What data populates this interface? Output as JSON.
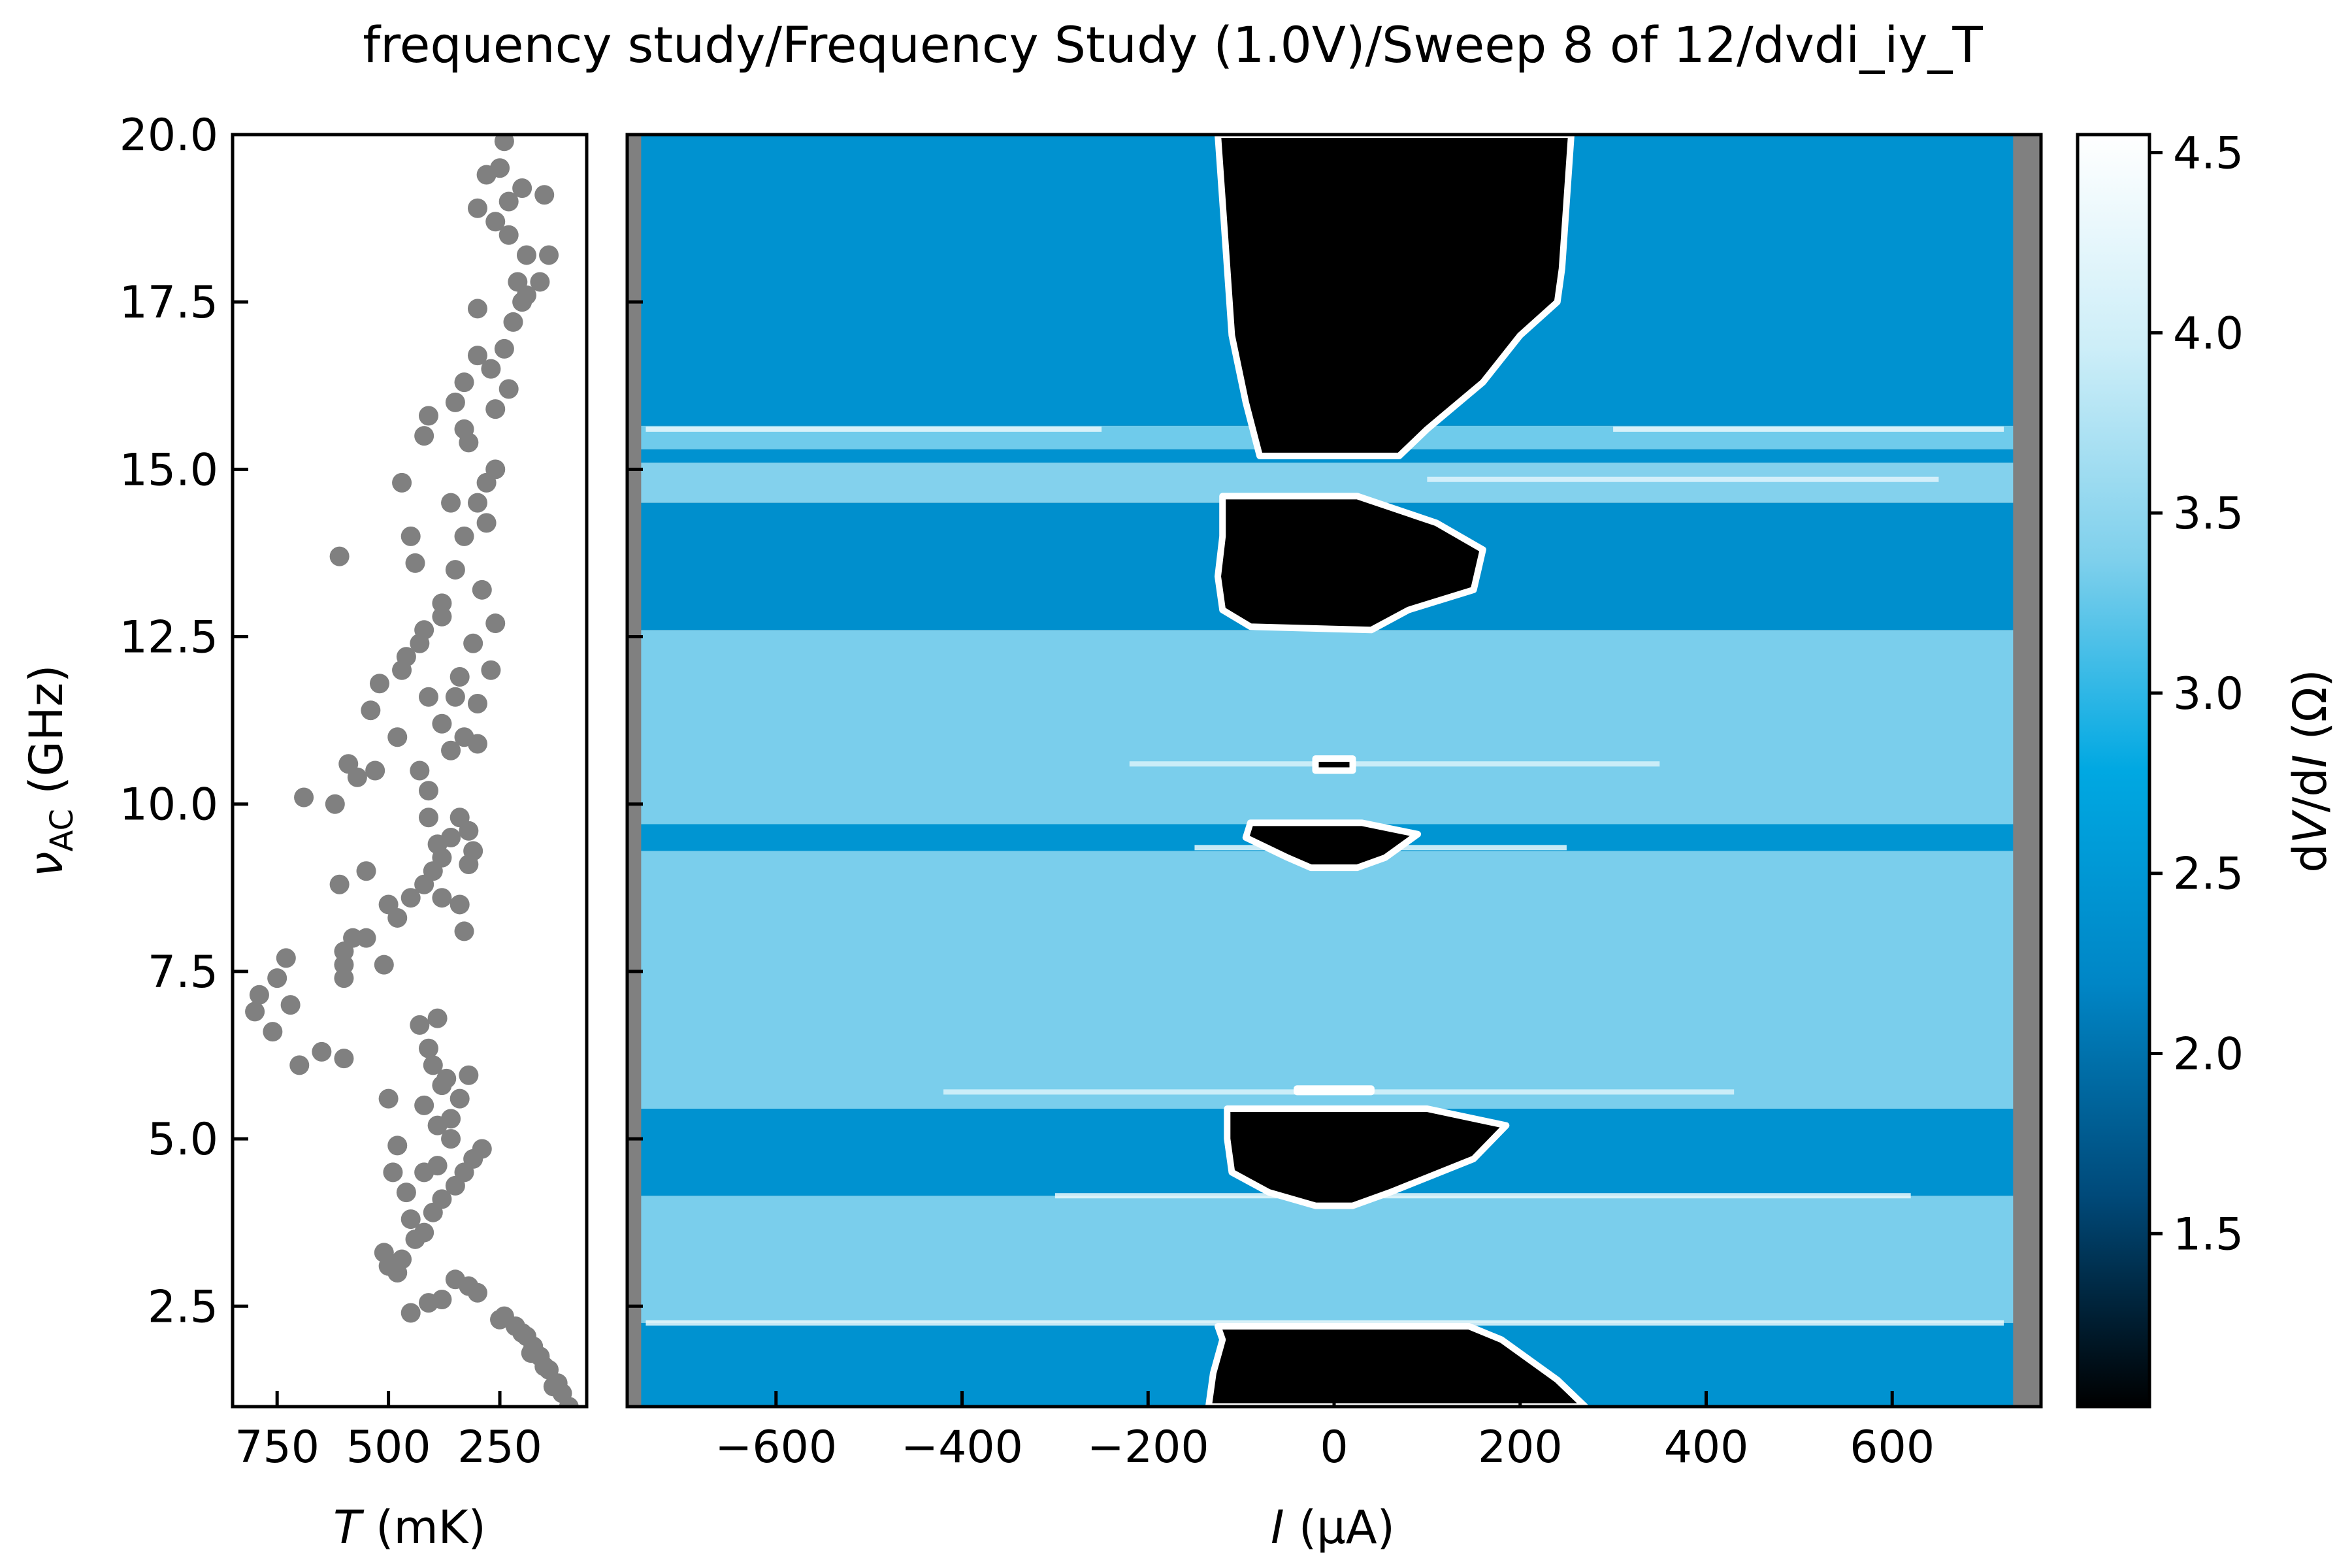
{
  "figure": {
    "title": "frequency study/Frequency Study (1.0V)/Sweep 8 of 12/dvdi_iy_T"
  },
  "chart_data": [
    {
      "type": "scatter",
      "xlabel": "T (mK)",
      "xlabel_var": "T",
      "xlabel_unit": " (mK)",
      "ylabel": "νAC (GHz)",
      "ylabel_var": "ν",
      "ylabel_sub": "AC",
      "ylabel_unit": " (GHz)",
      "xlim": [
        850,
        55
      ],
      "ylim": [
        1.0,
        20.0
      ],
      "x_ticks": [
        750,
        500,
        250
      ],
      "y_ticks": [
        2.5,
        5.0,
        7.5,
        10.0,
        12.5,
        15.0,
        17.5,
        20.0
      ],
      "y_tick_labels": [
        "2.5",
        "5.0",
        "7.5",
        "10.0",
        "12.5",
        "15.0",
        "17.5",
        "20.0"
      ],
      "marker_color": "#808080",
      "points": [
        [
          95,
          1.0
        ],
        [
          110,
          1.2
        ],
        [
          120,
          1.35
        ],
        [
          140,
          1.55
        ],
        [
          160,
          1.75
        ],
        [
          175,
          1.9
        ],
        [
          190,
          2.05
        ],
        [
          215,
          2.2
        ],
        [
          240,
          2.35
        ],
        [
          300,
          2.7
        ],
        [
          320,
          2.8
        ],
        [
          350,
          2.9
        ],
        [
          450,
          2.4
        ],
        [
          410,
          2.55
        ],
        [
          380,
          2.6
        ],
        [
          480,
          3.0
        ],
        [
          500,
          3.1
        ],
        [
          510,
          3.3
        ],
        [
          470,
          3.2
        ],
        [
          440,
          3.5
        ],
        [
          420,
          3.6
        ],
        [
          400,
          3.9
        ],
        [
          380,
          4.1
        ],
        [
          350,
          4.3
        ],
        [
          330,
          4.5
        ],
        [
          310,
          4.7
        ],
        [
          290,
          4.85
        ],
        [
          360,
          5.0
        ],
        [
          390,
          5.2
        ],
        [
          420,
          5.5
        ],
        [
          340,
          5.6
        ],
        [
          380,
          5.8
        ],
        [
          320,
          5.95
        ],
        [
          500,
          5.6
        ],
        [
          490,
          4.5
        ],
        [
          400,
          6.1
        ],
        [
          410,
          6.35
        ],
        [
          430,
          6.7
        ],
        [
          390,
          6.8
        ],
        [
          600,
          6.2
        ],
        [
          650,
          6.3
        ],
        [
          700,
          6.1
        ],
        [
          720,
          7.0
        ],
        [
          760,
          6.6
        ],
        [
          800,
          6.9
        ],
        [
          790,
          7.15
        ],
        [
          750,
          7.4
        ],
        [
          730,
          7.7
        ],
        [
          600,
          7.4
        ],
        [
          600,
          7.8
        ],
        [
          550,
          8.0
        ],
        [
          510,
          7.6
        ],
        [
          480,
          8.3
        ],
        [
          500,
          8.5
        ],
        [
          450,
          8.6
        ],
        [
          420,
          8.8
        ],
        [
          400,
          9.0
        ],
        [
          380,
          9.2
        ],
        [
          360,
          9.5
        ],
        [
          340,
          9.8
        ],
        [
          310,
          9.3
        ],
        [
          330,
          8.1
        ],
        [
          610,
          8.8
        ],
        [
          620,
          10.0
        ],
        [
          690,
          10.1
        ],
        [
          570,
          10.4
        ],
        [
          590,
          10.6
        ],
        [
          540,
          11.4
        ],
        [
          520,
          11.8
        ],
        [
          470,
          12.0
        ],
        [
          460,
          12.2
        ],
        [
          430,
          12.4
        ],
        [
          420,
          12.6
        ],
        [
          410,
          11.6
        ],
        [
          380,
          11.2
        ],
        [
          360,
          10.8
        ],
        [
          330,
          11.0
        ],
        [
          300,
          10.9
        ],
        [
          310,
          12.4
        ],
        [
          340,
          11.9
        ],
        [
          380,
          13.0
        ],
        [
          350,
          13.5
        ],
        [
          330,
          14.0
        ],
        [
          300,
          14.5
        ],
        [
          280,
          14.8
        ],
        [
          260,
          15.0
        ],
        [
          440,
          13.6
        ],
        [
          450,
          14.0
        ],
        [
          610,
          13.7
        ],
        [
          470,
          14.8
        ],
        [
          420,
          15.5
        ],
        [
          410,
          15.8
        ],
        [
          330,
          15.6
        ],
        [
          350,
          16.0
        ],
        [
          330,
          16.3
        ],
        [
          300,
          16.7
        ],
        [
          270,
          16.5
        ],
        [
          240,
          16.8
        ],
        [
          220,
          17.2
        ],
        [
          200,
          17.5
        ],
        [
          210,
          17.8
        ],
        [
          190,
          18.2
        ],
        [
          230,
          18.5
        ],
        [
          260,
          18.7
        ],
        [
          230,
          19.0
        ],
        [
          200,
          19.2
        ],
        [
          250,
          19.5
        ],
        [
          240,
          19.9
        ],
        [
          280,
          19.4
        ],
        [
          300,
          18.9
        ],
        [
          150,
          19.1
        ],
        [
          140,
          18.2
        ],
        [
          160,
          17.8
        ],
        [
          190,
          17.6
        ],
        [
          300,
          17.4
        ],
        [
          230,
          16.2
        ],
        [
          320,
          15.4
        ],
        [
          260,
          15.9
        ],
        [
          280,
          14.2
        ],
        [
          360,
          14.5
        ],
        [
          290,
          13.2
        ],
        [
          380,
          12.8
        ],
        [
          260,
          12.7
        ],
        [
          270,
          12.0
        ],
        [
          300,
          11.5
        ],
        [
          350,
          11.6
        ],
        [
          410,
          10.2
        ],
        [
          320,
          9.6
        ],
        [
          320,
          9.1
        ],
        [
          340,
          8.5
        ],
        [
          380,
          8.6
        ],
        [
          390,
          9.4
        ],
        [
          410,
          9.8
        ],
        [
          430,
          10.5
        ],
        [
          480,
          11.0
        ],
        [
          530,
          10.5
        ],
        [
          550,
          9.0
        ],
        [
          580,
          8.0
        ],
        [
          600,
          7.6
        ],
        [
          480,
          4.9
        ],
        [
          460,
          4.2
        ],
        [
          450,
          3.8
        ],
        [
          420,
          4.5
        ],
        [
          390,
          4.6
        ],
        [
          360,
          5.3
        ],
        [
          370,
          5.9
        ],
        [
          250,
          2.3
        ],
        [
          200,
          2.1
        ],
        [
          180,
          1.8
        ],
        [
          150,
          1.6
        ],
        [
          130,
          1.3
        ]
      ]
    },
    {
      "type": "heatmap",
      "xlabel": "I (μA)",
      "xlabel_var": "I",
      "xlabel_unit": " (μA)",
      "xlim": [
        -760,
        760
      ],
      "ylim": [
        1.0,
        20.0
      ],
      "x_ticks": [
        -600,
        -400,
        -200,
        0,
        200,
        400,
        600
      ],
      "x_tick_labels": [
        "−600",
        "−400",
        "−200",
        "0",
        "200",
        "400",
        "600"
      ],
      "data_extent_x": [
        -745,
        730
      ],
      "nan_color": "#808080",
      "colorbar": {
        "label": "dV/dI (Ω)",
        "label_parts": [
          "d",
          "V",
          "/d",
          "I",
          " (Ω)"
        ],
        "range": [
          1.02,
          4.55
        ],
        "ticks": [
          1.5,
          2.0,
          2.5,
          3.0,
          3.5,
          4.0,
          4.5
        ],
        "tick_labels": [
          "1.5",
          "2.0",
          "2.5",
          "3.0",
          "3.5",
          "4.0",
          "4.5"
        ],
        "colors": [
          "#000000",
          "#004a7a",
          "#0086c6",
          "#00a8e2",
          "#7fd0ec",
          "#cdeef8",
          "#ffffff"
        ]
      },
      "bands": [
        {
          "y0": 1.0,
          "y1": 2.25,
          "value": 2.4
        },
        {
          "y0": 2.25,
          "y1": 4.15,
          "value": 3.35
        },
        {
          "y0": 4.15,
          "y1": 5.45,
          "value": 2.4
        },
        {
          "y0": 5.45,
          "y1": 9.3,
          "value": 3.35
        },
        {
          "y0": 9.3,
          "y1": 9.7,
          "value": 2.45
        },
        {
          "y0": 9.7,
          "y1": 12.6,
          "value": 3.35
        },
        {
          "y0": 12.6,
          "y1": 14.5,
          "value": 2.35
        },
        {
          "y0": 14.5,
          "y1": 15.1,
          "value": 3.4
        },
        {
          "y0": 15.1,
          "y1": 15.3,
          "value": 2.4
        },
        {
          "y0": 15.3,
          "y1": 15.65,
          "value": 3.3
        },
        {
          "y0": 15.65,
          "y1": 20.0,
          "value": 2.4
        }
      ],
      "superconducting_regions": [
        {
          "name": "region-top",
          "left": [
            [
              -125,
              20.0
            ],
            [
              -120,
              19.0
            ],
            [
              -115,
              18.0
            ],
            [
              -110,
              17.0
            ],
            [
              -95,
              16.0
            ],
            [
              -80,
              15.2
            ]
          ],
          "right": [
            [
              255,
              20.0
            ],
            [
              250,
              19.0
            ],
            [
              245,
              18.0
            ],
            [
              240,
              17.5
            ],
            [
              200,
              17.0
            ],
            [
              160,
              16.3
            ],
            [
              100,
              15.6
            ],
            [
              70,
              15.2
            ]
          ]
        },
        {
          "name": "region-12-14",
          "left": [
            [
              -120,
              14.6
            ],
            [
              -120,
              14.0
            ],
            [
              -125,
              13.4
            ],
            [
              -120,
              12.9
            ],
            [
              -90,
              12.65
            ]
          ],
          "right": [
            [
              25,
              14.6
            ],
            [
              110,
              14.2
            ],
            [
              160,
              13.8
            ],
            [
              150,
              13.2
            ],
            [
              80,
              12.9
            ],
            [
              40,
              12.6
            ]
          ]
        },
        {
          "name": "region-10",
          "left": [
            [
              -20,
              10.68
            ],
            [
              -20,
              10.5
            ]
          ],
          "right": [
            [
              20,
              10.68
            ],
            [
              20,
              10.5
            ]
          ]
        },
        {
          "name": "region-9",
          "left": [
            [
              -90,
              9.72
            ],
            [
              -95,
              9.5
            ],
            [
              -50,
              9.2
            ],
            [
              -25,
              9.05
            ]
          ],
          "right": [
            [
              30,
              9.72
            ],
            [
              90,
              9.55
            ],
            [
              55,
              9.2
            ],
            [
              25,
              9.05
            ]
          ]
        },
        {
          "name": "region-5",
          "left": [
            [
              -40,
              5.75
            ],
            [
              -40,
              5.7
            ]
          ],
          "right": [
            [
              40,
              5.75
            ],
            [
              40,
              5.7
            ]
          ]
        },
        {
          "name": "region-4-5",
          "left": [
            [
              -115,
              5.45
            ],
            [
              -115,
              5.0
            ],
            [
              -110,
              4.5
            ],
            [
              -70,
              4.2
            ],
            [
              -20,
              4.0
            ]
          ],
          "right": [
            [
              100,
              5.45
            ],
            [
              185,
              5.2
            ],
            [
              150,
              4.7
            ],
            [
              60,
              4.2
            ],
            [
              20,
              4.0
            ]
          ]
        },
        {
          "name": "region-bottom",
          "left": [
            [
              -125,
              2.2
            ],
            [
              -120,
              2.0
            ],
            [
              -130,
              1.5
            ],
            [
              -135,
              1.0
            ]
          ],
          "right": [
            [
              145,
              2.2
            ],
            [
              180,
              2.0
            ],
            [
              240,
              1.4
            ],
            [
              270,
              1.0
            ]
          ]
        }
      ],
      "streaks": [
        {
          "y": 15.6,
          "x0": -740,
          "x1": -250,
          "value": 4.3
        },
        {
          "y": 15.6,
          "x0": 300,
          "x1": 720,
          "value": 4.3
        },
        {
          "y": 14.85,
          "x0": 100,
          "x1": 650,
          "value": 4.2
        },
        {
          "y": 10.6,
          "x0": -220,
          "x1": 350,
          "value": 4.1
        },
        {
          "y": 9.35,
          "x0": -150,
          "x1": 250,
          "value": 4.3
        },
        {
          "y": 5.7,
          "x0": -420,
          "x1": 430,
          "value": 4.1
        },
        {
          "y": 4.15,
          "x0": -300,
          "x1": 620,
          "value": 4.3
        },
        {
          "y": 2.25,
          "x0": -740,
          "x1": 720,
          "value": 4.3
        }
      ]
    }
  ]
}
